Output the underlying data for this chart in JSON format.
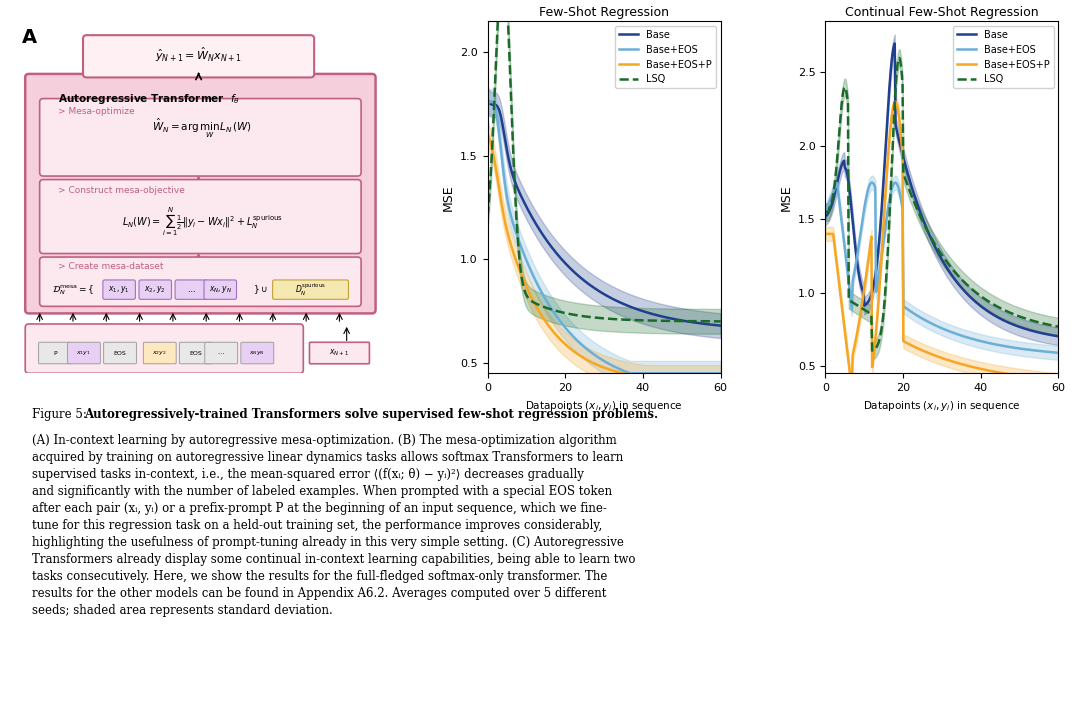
{
  "fig_width": 10.8,
  "fig_height": 7.03,
  "bg_color": "#ffffff",
  "panel_B_title": "Few-Shot Regression",
  "panel_C_title": "Continual Few-Shot Regression",
  "xlabel": "Datapoints $(x_i, y_i)$ in sequence",
  "ylabel": "MSE",
  "colors": {
    "base": "#1f3f8f",
    "base_eos": "#6baed6",
    "base_eos_p": "#f5a623",
    "lsq": "#1a6b2a"
  },
  "legend_labels": [
    "Base",
    "Base+EOS",
    "Base+EOS+P",
    "LSQ"
  ],
  "B_xlim": [
    0,
    60
  ],
  "B_ylim": [
    0.45,
    2.15
  ],
  "B_yticks": [
    0.5,
    1.0,
    1.5,
    2.0
  ],
  "C_xlim": [
    0,
    60
  ],
  "C_ylim": [
    0.45,
    2.85
  ],
  "C_yticks": [
    0.5,
    1.0,
    1.5,
    2.0,
    2.5
  ]
}
